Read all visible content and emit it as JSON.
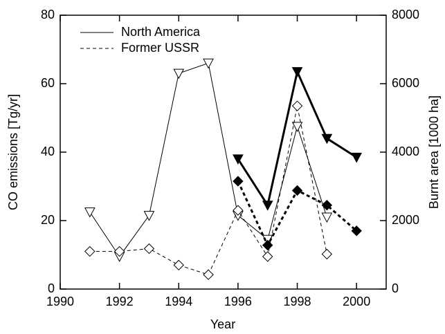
{
  "chart_data": {
    "type": "line",
    "xlabel": "Year",
    "ylabel": "CO emissions [Tg/yr]",
    "y2label": "Burnt area [1000 ha]",
    "xlim": [
      1990,
      2001
    ],
    "xticks": [
      1990,
      1992,
      1994,
      1996,
      1998,
      2000
    ],
    "ylim": [
      0,
      80
    ],
    "yticks": [
      0,
      20,
      40,
      60,
      80
    ],
    "y2lim": [
      0,
      8000
    ],
    "y2ticks": [
      0,
      2000,
      4000,
      6000,
      8000
    ],
    "legend_position": "upper left",
    "legend": [
      {
        "label": "North America",
        "dash": "solid"
      },
      {
        "label": "Former USSR",
        "dash": "dashed"
      }
    ],
    "series": [
      {
        "axis": "y2",
        "dash": "solid",
        "marker": "triangle-down",
        "filled": false,
        "width": 1,
        "color": "#000000",
        "x": [
          1991,
          1992,
          1993,
          1994,
          1995,
          1996,
          1997,
          1998,
          1999
        ],
        "values": [
          2250,
          950,
          2150,
          6300,
          6600,
          2150,
          1450,
          4750,
          2100
        ]
      },
      {
        "axis": "y2",
        "dash": "dashed",
        "marker": "diamond",
        "filled": false,
        "width": 1,
        "color": "#000000",
        "x": [
          1991,
          1992,
          1993,
          1994,
          1995,
          1996,
          1997,
          1998,
          1999
        ],
        "values": [
          1100,
          1100,
          1180,
          700,
          420,
          2300,
          950,
          5350,
          1020
        ]
      },
      {
        "axis": "y",
        "dash": "solid",
        "marker": "triangle-down",
        "filled": true,
        "width": 3,
        "color": "#000000",
        "x": [
          1996,
          1997,
          1998,
          1999,
          2000
        ],
        "values": [
          38,
          24.5,
          63.5,
          44,
          38.5
        ]
      },
      {
        "axis": "y",
        "dash": "dashed",
        "marker": "diamond",
        "filled": true,
        "width": 3,
        "color": "#000000",
        "x": [
          1996,
          1997,
          1998,
          1999,
          2000
        ],
        "values": [
          31.5,
          12.8,
          28.8,
          24.5,
          17
        ]
      }
    ]
  }
}
